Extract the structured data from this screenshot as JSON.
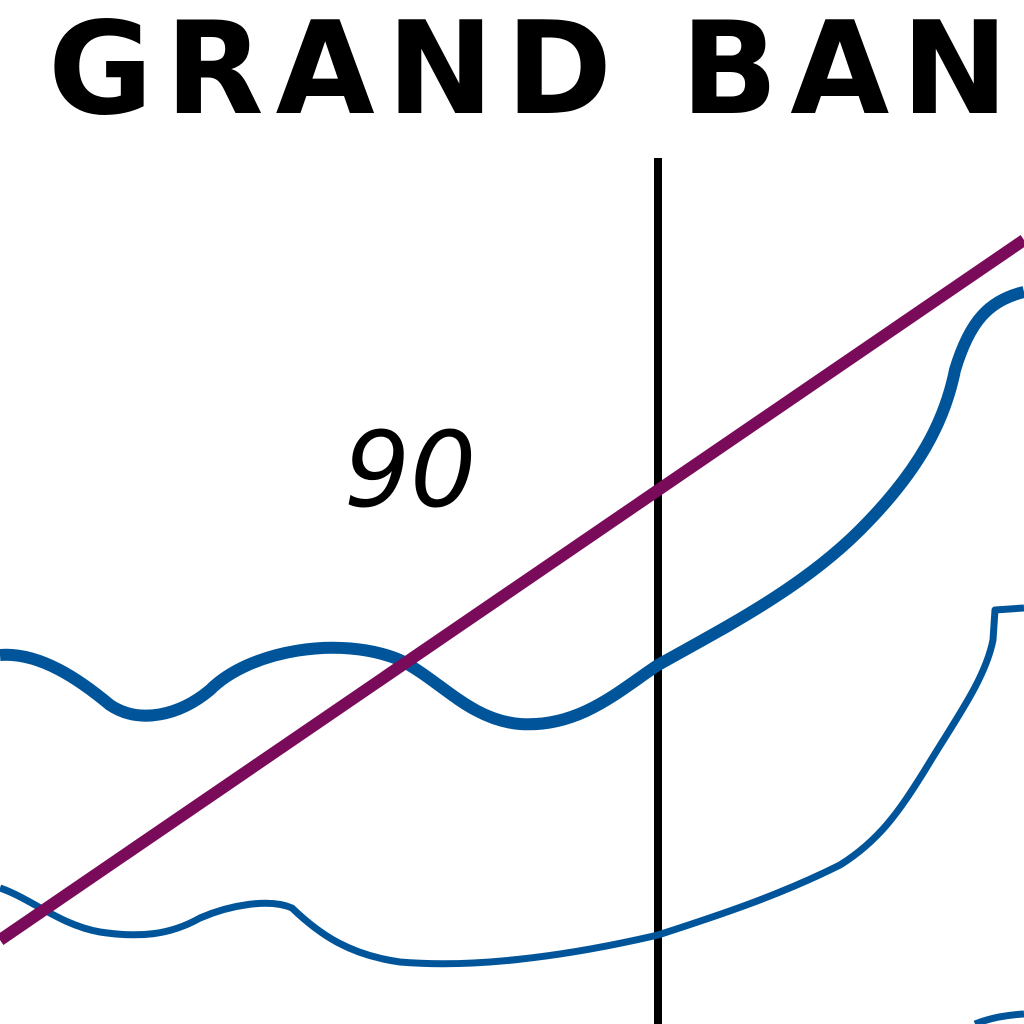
{
  "map": {
    "region_label": "GRAND BANC",
    "depth_label": "90"
  },
  "colors": {
    "background": "#ffffff",
    "label": "#000000",
    "grid_line": "#000000",
    "route_line": "#7a0a5a",
    "depth_contour": "#00559a"
  }
}
